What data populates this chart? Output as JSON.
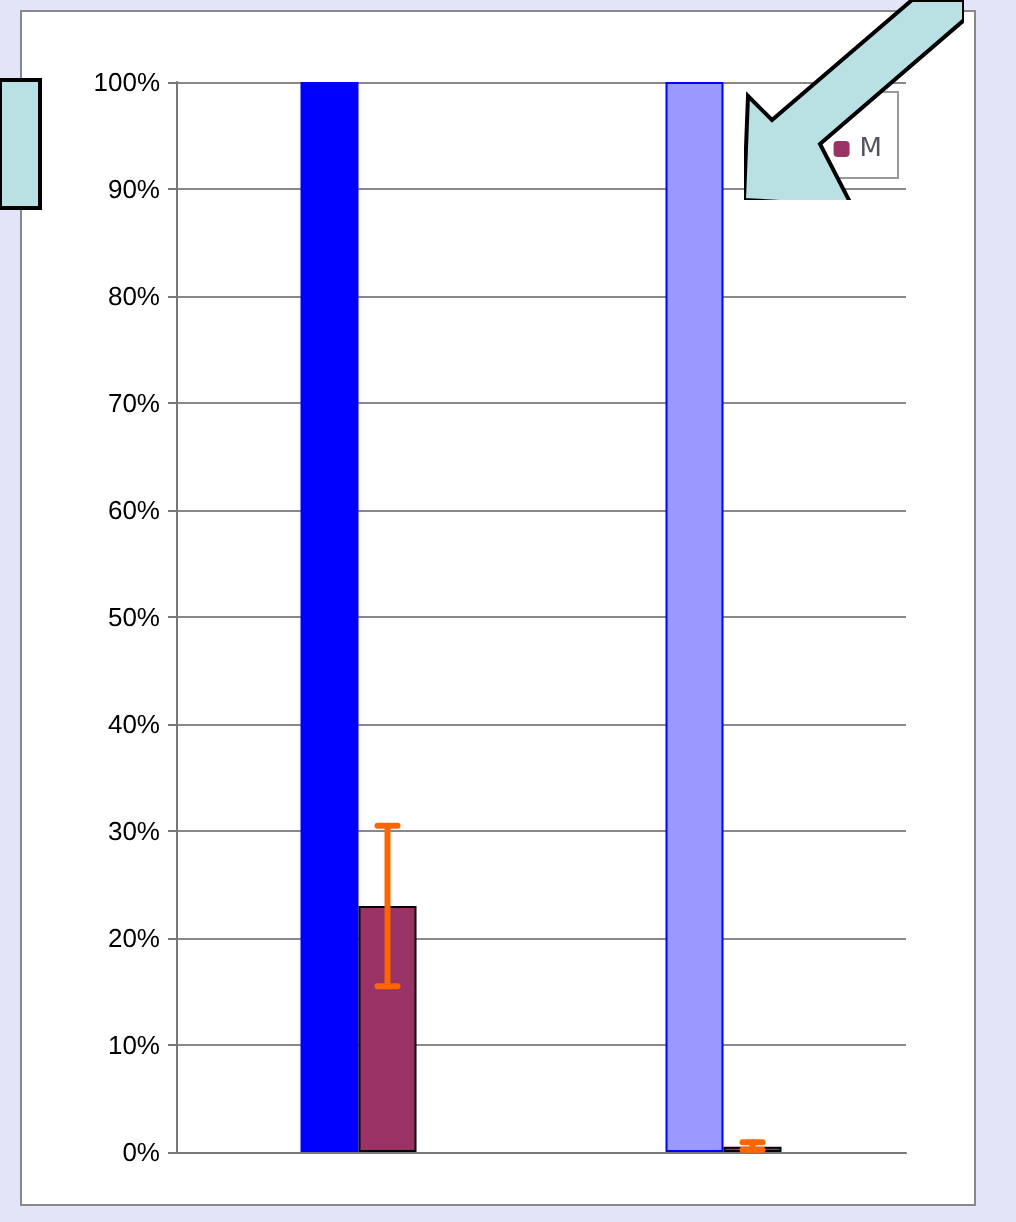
{
  "chart_data": {
    "type": "bar",
    "categories": [
      null,
      null
    ],
    "series": [
      {
        "colors": [
          "#0000ff",
          "#9999ff"
        ],
        "values": [
          100,
          100
        ]
      },
      {
        "name": "M",
        "color": "#993366",
        "values": [
          23,
          0.5
        ],
        "errors": [
          [
            15.5,
            30.5
          ],
          [
            0.2,
            0.9
          ]
        ]
      }
    ],
    "ylim": [
      0,
      100
    ],
    "yticks": [
      {
        "value": 0,
        "label": "0%"
      },
      {
        "value": 10,
        "label": "10%"
      },
      {
        "value": 20,
        "label": "20%"
      },
      {
        "value": 30,
        "label": "30%"
      },
      {
        "value": 40,
        "label": "40%"
      },
      {
        "value": 50,
        "label": "50%"
      },
      {
        "value": 60,
        "label": "60%"
      },
      {
        "value": 70,
        "label": "70%"
      },
      {
        "value": 80,
        "label": "80%"
      },
      {
        "value": 90,
        "label": "90%"
      },
      {
        "value": 100,
        "label": "100%"
      }
    ],
    "grid": "y",
    "legend": "top right"
  }
}
